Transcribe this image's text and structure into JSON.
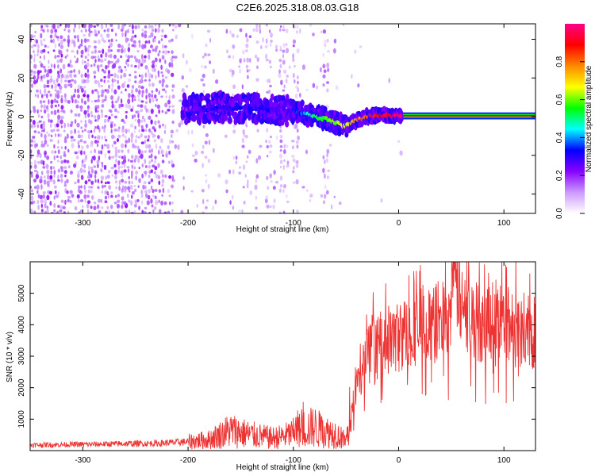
{
  "title": "C2E6.2025.318.08.03.G18",
  "chart_data": [
    {
      "type": "heatmap",
      "title": "C2E6.2025.318.08.03.G18",
      "xlabel": "Height of straight line (km)",
      "ylabel": "Frequency (Hz)",
      "xlim": [
        -350,
        130
      ],
      "ylim": [
        -50,
        48
      ],
      "xticks": [
        -300,
        -200,
        -100,
        0,
        100
      ],
      "yticks": [
        -40,
        -20,
        0,
        20,
        40
      ],
      "x_tick_labels": [
        "-300",
        "-200",
        "-100",
        "0",
        "100"
      ],
      "y_tick_labels": [
        "-40",
        "-20",
        "0",
        "20",
        "40"
      ],
      "colorbar": {
        "label": "Normalized spectral amplitude",
        "range": [
          0.0,
          1.0
        ],
        "ticks": [
          0.0,
          0.2,
          0.4,
          0.6,
          0.8
        ],
        "tick_labels": [
          "0.0",
          "0.2",
          "0.4",
          "0.6",
          "0.8"
        ],
        "colors": [
          "#ffffff",
          "#cc99ff",
          "#8800ff",
          "#0000ff",
          "#00ffff",
          "#00ff00",
          "#ffff00",
          "#ff8800",
          "#ff0000",
          "#ff0088"
        ]
      },
      "ridge": {
        "x": [
          -200,
          -190,
          -180,
          -170,
          -160,
          -150,
          -140,
          -130,
          -120,
          -110,
          -100,
          -90,
          -80,
          -70,
          -60,
          -50,
          -40,
          -30,
          -20,
          -10,
          0,
          130
        ],
        "frequency": [
          4,
          4,
          4,
          5,
          4,
          4,
          5,
          4,
          4,
          3,
          3,
          2,
          0,
          -1,
          -3,
          -5,
          -2,
          0,
          0.5,
          0.5,
          0.5,
          0.5
        ],
        "amplitude": [
          0.2,
          0.25,
          0.3,
          0.3,
          0.3,
          0.3,
          0.3,
          0.3,
          0.3,
          0.25,
          0.3,
          0.4,
          0.5,
          0.55,
          0.6,
          0.65,
          0.75,
          0.85,
          0.9,
          0.92,
          0.95,
          0.95
        ]
      }
    },
    {
      "type": "line",
      "xlabel": "Height of straight line (km)",
      "ylabel": "SNR (10 * v/v)",
      "xlim": [
        -350,
        130
      ],
      "ylim": [
        0,
        6000
      ],
      "xticks": [
        -300,
        -200,
        -100,
        0,
        100
      ],
      "yticks": [
        1000,
        2000,
        3000,
        4000,
        5000
      ],
      "x_tick_labels": [
        "-300",
        "-200",
        "-100",
        "0",
        "100"
      ],
      "y_tick_labels": [
        "1000",
        "2000",
        "3000",
        "4000",
        "5000"
      ],
      "line_color": "#ee3333",
      "series": [
        {
          "name": "SNR",
          "x": [
            -350,
            -320,
            -290,
            -260,
            -230,
            -200,
            -180,
            -160,
            -140,
            -120,
            -110,
            -100,
            -90,
            -80,
            -70,
            -60,
            -50,
            -40,
            -30,
            -20,
            -10,
            0,
            10,
            20,
            30,
            40,
            50,
            56,
            60,
            70,
            80,
            90,
            100,
            110,
            120,
            130
          ],
          "values": [
            180,
            190,
            200,
            220,
            230,
            280,
            350,
            650,
            500,
            400,
            450,
            550,
            700,
            750,
            600,
            550,
            300,
            2000,
            3000,
            3300,
            3500,
            3600,
            3800,
            4000,
            3900,
            4200,
            4500,
            5500,
            4400,
            4200,
            4000,
            4300,
            4100,
            3900,
            3800,
            3700
          ]
        }
      ]
    }
  ]
}
